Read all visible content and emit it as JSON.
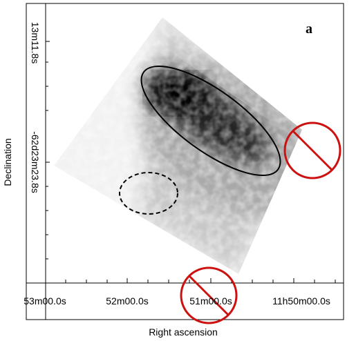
{
  "panel_label": "a",
  "x_axis": {
    "label": "Right ascension",
    "ticks": [
      "53m00.0s",
      "52m00.0s",
      "51m00.0s",
      "11h50m00.0s"
    ]
  },
  "y_axis": {
    "label": "Declination",
    "ticks": [
      "13m11.8s",
      "-62d23m23.8s"
    ]
  }
}
